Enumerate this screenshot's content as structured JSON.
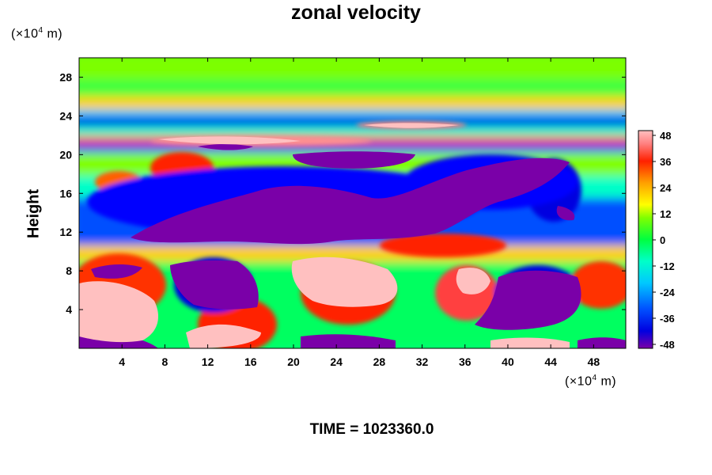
{
  "chart_data": {
    "type": "heatmap",
    "title": "zonal velocity",
    "ylabel": "Height",
    "x_units": {
      "prefix": "(×10",
      "exponent": "4",
      "suffix": " m)"
    },
    "y_units": {
      "prefix": "(×10",
      "exponent": "4",
      "suffix": " m)"
    },
    "x_ticks": [
      4,
      8,
      12,
      16,
      20,
      24,
      28,
      32,
      36,
      40,
      44,
      48
    ],
    "y_ticks": [
      4,
      8,
      12,
      16,
      20,
      24,
      28
    ],
    "xlim": [
      0,
      51
    ],
    "ylim": [
      0,
      30
    ],
    "colorbar": {
      "ticks": [
        48,
        36,
        24,
        12,
        0,
        -12,
        -24,
        -36,
        -48
      ],
      "range": [
        -48,
        48
      ],
      "colors": [
        "#7a00a8",
        "#0000e0",
        "#0050ff",
        "#00c8ff",
        "#00ffc8",
        "#00ff40",
        "#80ff00",
        "#ffff00",
        "#ffa000",
        "#ff2000",
        "#ff8080",
        "#ffc0c0"
      ]
    },
    "annotation": "TIME = 1023360.0"
  }
}
